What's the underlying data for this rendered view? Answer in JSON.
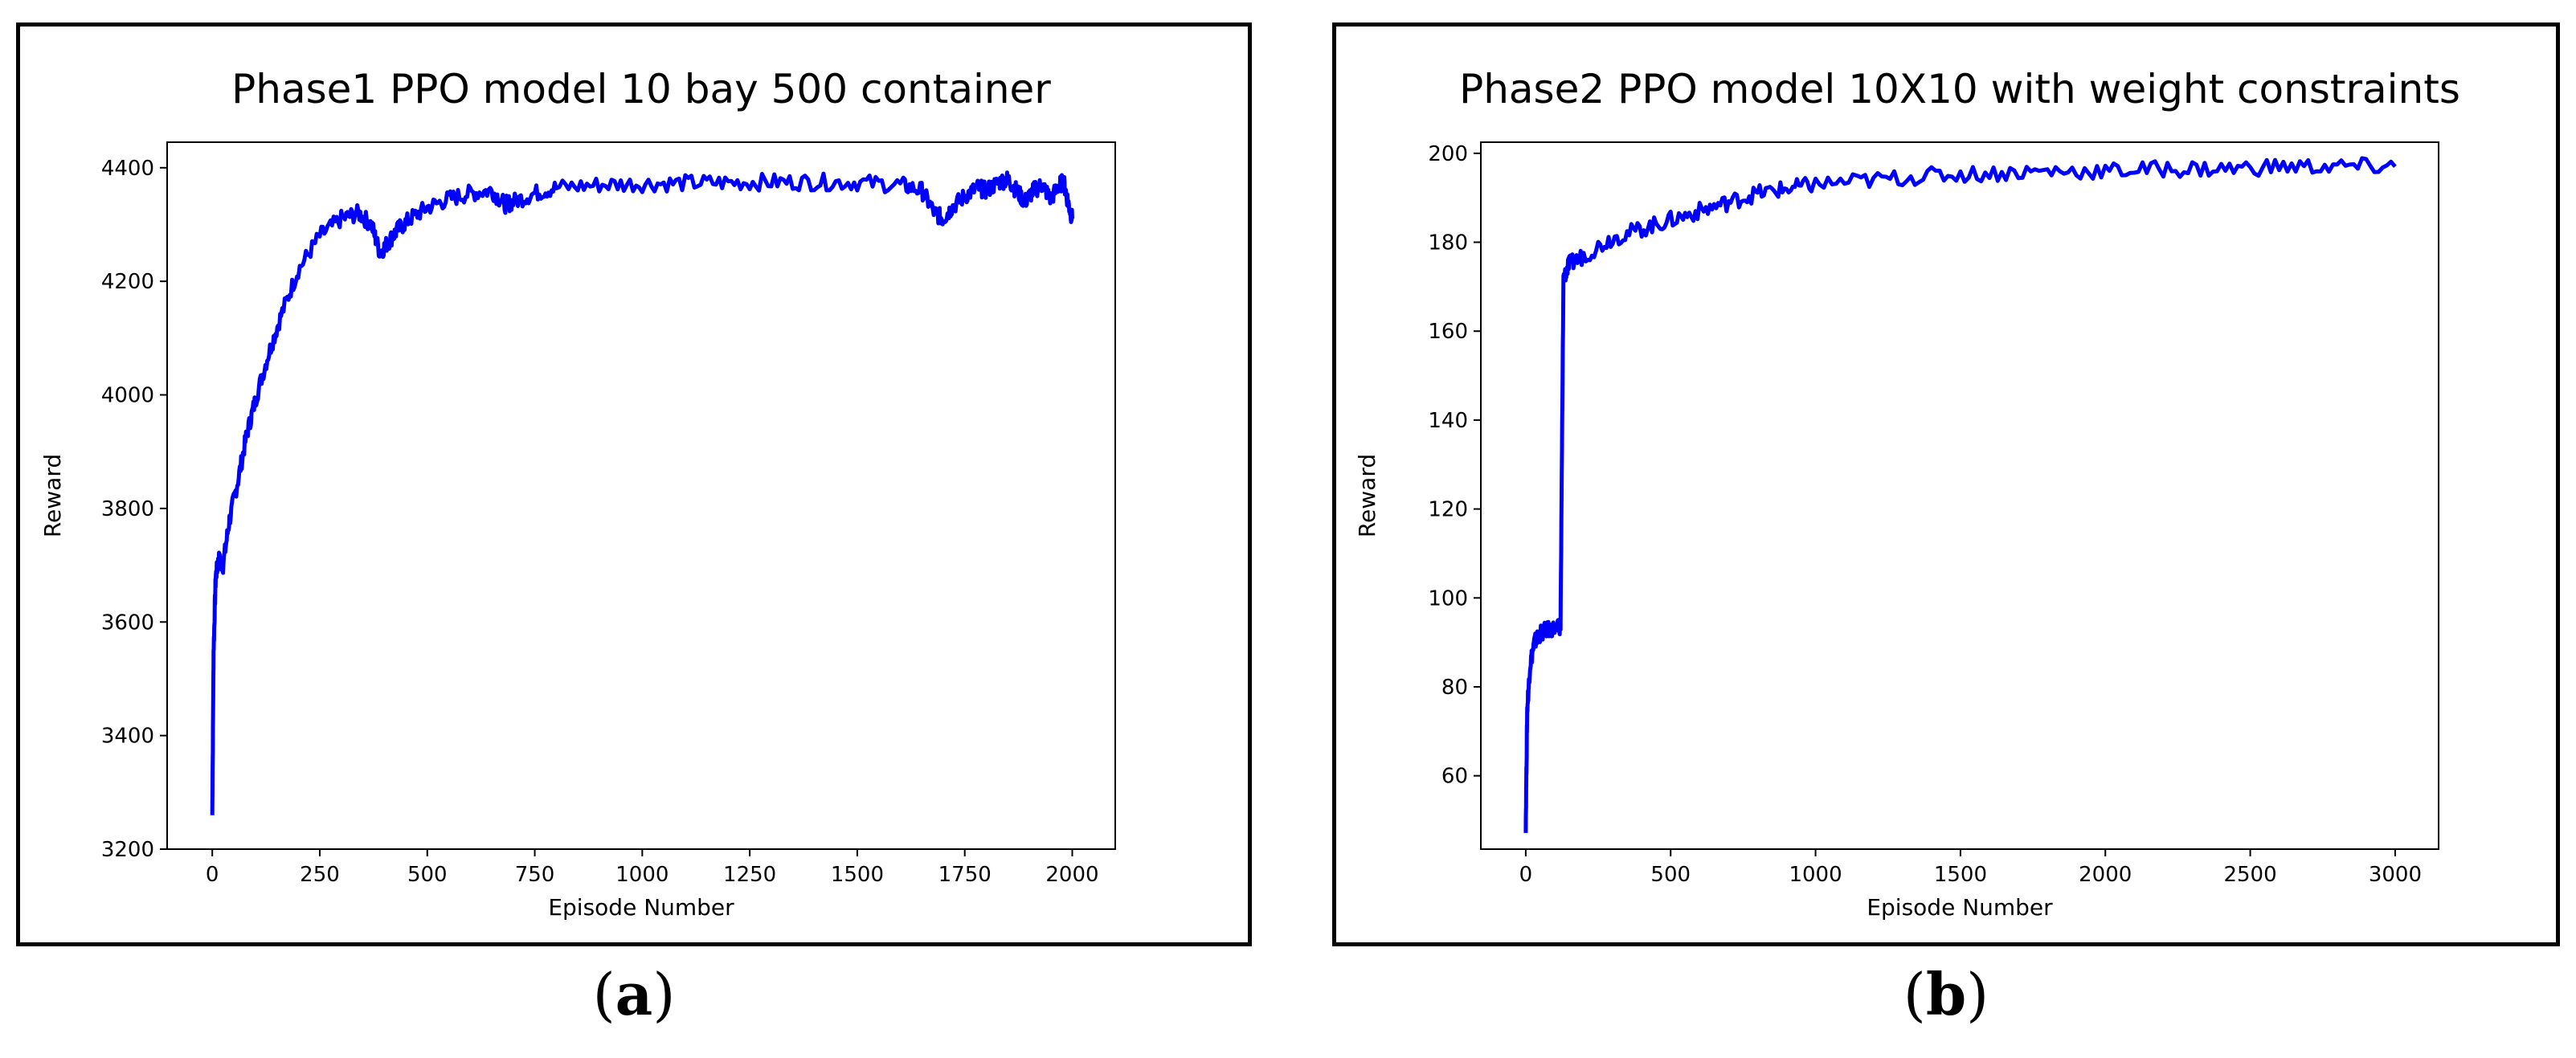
{
  "chart_data": [
    {
      "type": "line",
      "title": "Phase1 PPO model 10 bay 500 container",
      "xlabel": "Episode Number",
      "ylabel": "Reward",
      "xlim": [
        -105,
        2100
      ],
      "ylim": [
        3200,
        4445
      ],
      "xticks": [
        0,
        250,
        500,
        750,
        1000,
        1250,
        1500,
        1750,
        2000
      ],
      "yticks": [
        3200,
        3400,
        3600,
        3800,
        4000,
        4200,
        4400
      ],
      "color": "#0000ff",
      "series": [
        {
          "name": "reward",
          "x": [
            0,
            3,
            8,
            15,
            25,
            40,
            60,
            80,
            100,
            130,
            160,
            200,
            250,
            300,
            340,
            370,
            390,
            410,
            430,
            460,
            500,
            550,
            600,
            650,
            680,
            700,
            750,
            800,
            900,
            1000,
            1100,
            1200,
            1300,
            1400,
            1500,
            1600,
            1650,
            1680,
            1700,
            1720,
            1750,
            1780,
            1800,
            1830,
            1850,
            1870,
            1890,
            1910,
            1930,
            1950,
            1970,
            1980,
            1990,
            2000
          ],
          "y": [
            3260,
            3550,
            3680,
            3710,
            3700,
            3780,
            3850,
            3930,
            3990,
            4070,
            4140,
            4220,
            4280,
            4310,
            4320,
            4300,
            4250,
            4270,
            4290,
            4310,
            4330,
            4345,
            4355,
            4360,
            4335,
            4340,
            4355,
            4365,
            4370,
            4372,
            4373,
            4374,
            4375,
            4375,
            4374,
            4370,
            4360,
            4320,
            4310,
            4330,
            4350,
            4365,
            4360,
            4375,
            4380,
            4360,
            4340,
            4360,
            4370,
            4345,
            4370,
            4375,
            4340,
            4310
          ]
        }
      ]
    },
    {
      "type": "line",
      "title": "Phase2 PPO model 10X10 with weight constraints",
      "xlabel": "Episode Number",
      "ylabel": "Reward",
      "xlim": [
        -155,
        3150
      ],
      "ylim": [
        43.5,
        202.5
      ],
      "xticks": [
        0,
        500,
        1000,
        1500,
        2000,
        2500,
        3000
      ],
      "yticks": [
        60,
        80,
        100,
        120,
        140,
        160,
        180,
        200
      ],
      "color": "#0000ff",
      "series": [
        {
          "name": "reward",
          "x": [
            0,
            5,
            15,
            30,
            50,
            80,
            110,
            120,
            130,
            150,
            200,
            300,
            400,
            500,
            600,
            700,
            800,
            900,
            1000,
            1200,
            1400,
            1600,
            1800,
            2000,
            2200,
            2400,
            2600,
            2800,
            3000
          ],
          "y": [
            49,
            75,
            85,
            90,
            92,
            93,
            93,
            94,
            172,
            175,
            177,
            181,
            183,
            185,
            187,
            189,
            191,
            192,
            193,
            194,
            195,
            195.5,
            196,
            196,
            196.5,
            196.5,
            197,
            197,
            197
          ]
        }
      ]
    }
  ],
  "captions": [
    {
      "open": "(",
      "label": "a",
      "close": ")"
    },
    {
      "open": "(",
      "label": "b",
      "close": ")"
    }
  ]
}
